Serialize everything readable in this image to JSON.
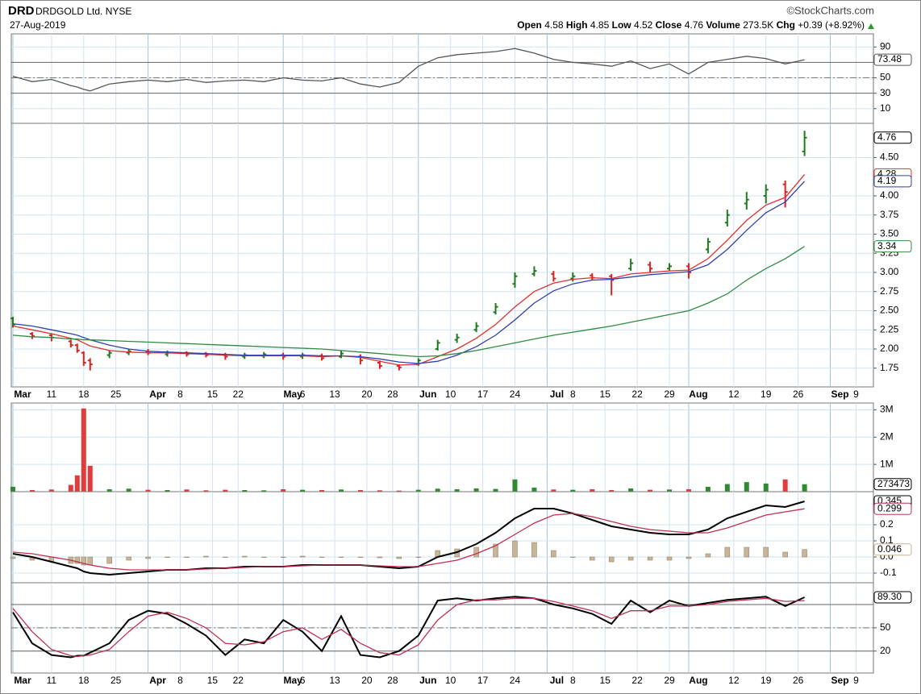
{
  "header": {
    "symbol": "DRD",
    "name": "DRDGOLD Ltd.",
    "exchange": "NYSE",
    "date": "27-Aug-2019",
    "source": "©StockCharts.com",
    "quote": [
      {
        "label": "Open",
        "value": "4.58"
      },
      {
        "label": "High",
        "value": "4.85"
      },
      {
        "label": "Low",
        "value": "4.52"
      },
      {
        "label": "Close",
        "value": "4.76"
      },
      {
        "label": "Volume",
        "value": "273.5K"
      },
      {
        "label": "Chg",
        "value": "+0.39 (+8.92%)"
      }
    ]
  },
  "chart_data": {
    "type": "stock",
    "xlim": [
      -0.25,
      133.7
    ],
    "xticks": [
      {
        "value": 0,
        "label": "Mar"
      },
      {
        "value": 6,
        "label": "11"
      },
      {
        "value": 11,
        "label": "18"
      },
      {
        "value": 16,
        "label": "25"
      },
      {
        "value": 21,
        "label": "Apr"
      },
      {
        "value": 26,
        "label": "8"
      },
      {
        "value": 31,
        "label": "15"
      },
      {
        "value": 35,
        "label": "22"
      },
      {
        "value": 42,
        "label": "May"
      },
      {
        "value": 45,
        "label": "6"
      },
      {
        "value": 50,
        "label": "13"
      },
      {
        "value": 55,
        "label": "20"
      },
      {
        "value": 59,
        "label": "28"
      },
      {
        "value": 63,
        "label": "Jun"
      },
      {
        "value": 68,
        "label": "10"
      },
      {
        "value": 73,
        "label": "17"
      },
      {
        "value": 78,
        "label": "24"
      },
      {
        "value": 83,
        "label": "Jul"
      },
      {
        "value": 87,
        "label": "8"
      },
      {
        "value": 92,
        "label": "15"
      },
      {
        "value": 97,
        "label": "22"
      },
      {
        "value": 102,
        "label": "29"
      },
      {
        "value": 105,
        "label": "Aug"
      },
      {
        "value": 112,
        "label": "12"
      },
      {
        "value": 117,
        "label": "19"
      },
      {
        "value": 122,
        "label": "26"
      },
      {
        "value": 127,
        "label": "Sep"
      },
      {
        "value": 131,
        "label": "9"
      }
    ],
    "x": [
      0,
      3,
      6,
      9,
      10,
      11,
      12,
      15,
      18,
      21,
      24,
      27,
      30,
      33,
      36,
      39,
      42,
      45,
      48,
      51,
      54,
      57,
      60,
      63,
      66,
      69,
      72,
      75,
      78,
      81,
      84,
      87,
      90,
      93,
      96,
      99,
      102,
      105,
      108,
      111,
      114,
      117,
      120,
      123
    ],
    "panels": [
      {
        "type": "line",
        "ylim": [
          -9,
          107
        ],
        "yticks": [
          10,
          30,
          50,
          90
        ],
        "bands": [
          30,
          70
        ],
        "centerline": 50,
        "series": [
          {
            "color": "#555555",
            "label_last": true,
            "values": [
              52,
              45,
              48,
              40,
              38,
              35,
              33,
              42,
              45,
              47,
              45,
              48,
              44,
              46,
              47,
              45,
              50,
              47,
              46,
              50,
              42,
              38,
              44,
              65,
              76,
              80,
              82,
              84,
              88,
              82,
              74,
              70,
              68,
              65,
              72,
              62,
              68,
              55,
              70,
              74,
              78,
              75,
              68,
              73.48
            ]
          }
        ]
      },
      {
        "type": "ohlc",
        "ylim": [
          1.505,
          4.947
        ],
        "x_labels": true,
        "label_last": true,
        "up_color": "#1e7b1e",
        "down_color": "#e02020",
        "yticks": [
          1.75,
          {
            "value": 2,
            "label": "2.00"
          },
          2.25,
          {
            "value": 2.5,
            "label": "2.50"
          },
          2.75,
          {
            "value": 3,
            "label": "3.00"
          },
          3.25,
          {
            "value": 3.5,
            "label": "3.50"
          },
          3.75,
          {
            "value": 4,
            "label": "4.00"
          },
          {
            "value": 4.5,
            "label": "4.50"
          }
        ],
        "open": [
          2.4,
          2.2,
          2.18,
          2.1,
          2.05,
          1.95,
          1.85,
          1.92,
          1.95,
          1.97,
          1.93,
          1.95,
          1.94,
          1.92,
          1.9,
          1.91,
          1.92,
          1.9,
          1.91,
          1.9,
          1.9,
          1.82,
          1.78,
          1.8,
          2.0,
          2.12,
          2.25,
          2.48,
          2.85,
          2.98,
          2.98,
          2.92,
          2.96,
          2.95,
          3.05,
          3.1,
          3.05,
          3.08,
          3.3,
          3.65,
          3.9,
          4.0,
          4.15,
          4.58
        ],
        "high": [
          2.42,
          2.22,
          2.2,
          2.12,
          2.07,
          1.97,
          1.88,
          1.98,
          2.0,
          2.0,
          1.98,
          1.97,
          1.96,
          1.95,
          1.95,
          1.96,
          1.95,
          1.95,
          1.94,
          1.98,
          1.93,
          1.85,
          1.8,
          1.88,
          2.12,
          2.2,
          2.35,
          2.6,
          3.0,
          3.08,
          3.02,
          3.0,
          2.99,
          2.98,
          3.18,
          3.14,
          3.12,
          3.12,
          3.45,
          3.82,
          4.05,
          4.15,
          4.2,
          4.85
        ],
        "low": [
          2.28,
          2.13,
          2.1,
          2.02,
          1.95,
          1.78,
          1.72,
          1.88,
          1.92,
          1.92,
          1.9,
          1.9,
          1.89,
          1.86,
          1.87,
          1.88,
          1.86,
          1.87,
          1.85,
          1.88,
          1.8,
          1.74,
          1.72,
          1.78,
          1.98,
          2.08,
          2.22,
          2.45,
          2.8,
          2.95,
          2.88,
          2.88,
          2.9,
          2.7,
          3.02,
          3.0,
          3.02,
          2.92,
          3.25,
          3.6,
          3.82,
          3.9,
          3.85,
          4.52
        ],
        "close": [
          2.32,
          2.17,
          2.15,
          2.05,
          1.98,
          1.82,
          1.8,
          1.95,
          1.97,
          1.95,
          1.95,
          1.93,
          1.92,
          1.9,
          1.92,
          1.93,
          1.9,
          1.92,
          1.88,
          1.94,
          1.85,
          1.78,
          1.76,
          1.85,
          2.08,
          2.15,
          2.3,
          2.55,
          2.95,
          3.02,
          2.92,
          2.95,
          2.93,
          2.9,
          3.12,
          3.05,
          3.08,
          3.0,
          3.4,
          3.75,
          3.95,
          4.08,
          4.05,
          4.76
        ],
        "series": [
          {
            "color": "#e03030",
            "label_last": true,
            "values": [
              2.3,
              2.25,
              2.2,
              2.14,
              2.12,
              2.08,
              2.04,
              1.98,
              1.96,
              1.95,
              1.95,
              1.94,
              1.93,
              1.92,
              1.91,
              1.91,
              1.91,
              1.91,
              1.9,
              1.91,
              1.89,
              1.84,
              1.79,
              1.8,
              1.9,
              2.0,
              2.14,
              2.32,
              2.55,
              2.75,
              2.86,
              2.91,
              2.93,
              2.92,
              2.98,
              3.0,
              3.02,
              3.03,
              3.18,
              3.42,
              3.68,
              3.88,
              3.98,
              4.28
            ]
          },
          {
            "color": "#3040b0",
            "label_last": true,
            "values": [
              2.33,
              2.3,
              2.25,
              2.2,
              2.18,
              2.15,
              2.12,
              2.05,
              2.0,
              1.97,
              1.96,
              1.95,
              1.94,
              1.93,
              1.92,
              1.92,
              1.92,
              1.92,
              1.91,
              1.91,
              1.9,
              1.87,
              1.83,
              1.81,
              1.84,
              1.92,
              2.03,
              2.18,
              2.38,
              2.6,
              2.76,
              2.85,
              2.9,
              2.91,
              2.94,
              2.97,
              2.99,
              3.01,
              3.1,
              3.3,
              3.55,
              3.78,
              3.92,
              4.19
            ]
          },
          {
            "color": "#2e8b3e",
            "label_last": true,
            "values": [
              2.18,
              2.16,
              2.15,
              2.13,
              2.13,
              2.12,
              2.12,
              2.11,
              2.1,
              2.09,
              2.08,
              2.07,
              2.06,
              2.05,
              2.04,
              2.03,
              2.02,
              2.01,
              2.0,
              1.98,
              1.96,
              1.94,
              1.92,
              1.9,
              1.91,
              1.94,
              1.98,
              2.03,
              2.08,
              2.13,
              2.18,
              2.22,
              2.26,
              2.3,
              2.35,
              2.4,
              2.45,
              2.5,
              2.6,
              2.72,
              2.9,
              3.05,
              3.18,
              3.34
            ]
          }
        ]
      },
      {
        "type": "bar",
        "ylim": [
          0,
          3250000
        ],
        "label_last": true,
        "up_color": "#2e8b2e",
        "down_color": "#e03c3c",
        "yticks": [
          {
            "value": 1000000,
            "label": "1M"
          },
          {
            "value": 2000000,
            "label": "2M"
          },
          {
            "value": 3000000,
            "label": "3M"
          }
        ],
        "values": [
          180000,
          60000,
          80000,
          250000,
          600000,
          3050000,
          950000,
          90000,
          110000,
          70000,
          60000,
          80000,
          50000,
          70000,
          60000,
          50000,
          90000,
          70000,
          60000,
          80000,
          60000,
          50000,
          40000,
          70000,
          110000,
          90000,
          120000,
          100000,
          450000,
          150000,
          80000,
          70000,
          90000,
          60000,
          120000,
          70000,
          80000,
          90000,
          180000,
          280000,
          350000,
          300000,
          450000,
          273473
        ]
      },
      {
        "type": "line",
        "ylim": [
          -0.16,
          0.405
        ],
        "yticks": [
          -0.1,
          {
            "value": 0,
            "label": "0.0"
          },
          0.1,
          0.2
        ],
        "series": [
          {
            "type": "bar",
            "color": "#c8b496",
            "label_last": true,
            "values": [
              -0.01,
              -0.02,
              -0.03,
              -0.04,
              -0.04,
              -0.05,
              -0.05,
              -0.04,
              -0.02,
              -0.01,
              0,
              0,
              0.005,
              0,
              0.005,
              0,
              0,
              0.005,
              0,
              0,
              0,
              -0.005,
              -0.01,
              0,
              0.04,
              0.05,
              0.06,
              0.08,
              0.1,
              0.09,
              0.04,
              0,
              -0.02,
              -0.03,
              -0.02,
              -0.02,
              -0.02,
              -0.01,
              0.02,
              0.06,
              0.06,
              0.06,
              0.03,
              0.046
            ]
          },
          {
            "color": "#000000",
            "label_last": true,
            "values": [
              0.02,
              0.0,
              -0.03,
              -0.06,
              -0.07,
              -0.09,
              -0.1,
              -0.11,
              -0.1,
              -0.09,
              -0.08,
              -0.08,
              -0.07,
              -0.07,
              -0.06,
              -0.06,
              -0.06,
              -0.05,
              -0.05,
              -0.05,
              -0.05,
              -0.06,
              -0.07,
              -0.06,
              0.0,
              0.03,
              0.08,
              0.15,
              0.24,
              0.3,
              0.3,
              0.27,
              0.23,
              0.19,
              0.17,
              0.15,
              0.14,
              0.14,
              0.17,
              0.24,
              0.28,
              0.32,
              0.31,
              0.345
            ]
          },
          {
            "color": "#c03050",
            "label_last": true,
            "values": [
              0.03,
              0.02,
              0.0,
              -0.02,
              -0.03,
              -0.04,
              -0.05,
              -0.07,
              -0.08,
              -0.08,
              -0.08,
              -0.08,
              -0.075,
              -0.07,
              -0.065,
              -0.06,
              -0.06,
              -0.055,
              -0.05,
              -0.05,
              -0.05,
              -0.055,
              -0.06,
              -0.06,
              -0.04,
              -0.02,
              0.02,
              0.07,
              0.14,
              0.21,
              0.26,
              0.27,
              0.25,
              0.22,
              0.19,
              0.17,
              0.16,
              0.15,
              0.15,
              0.18,
              0.22,
              0.26,
              0.28,
              0.299
            ]
          }
        ]
      },
      {
        "type": "line",
        "ylim": [
          -8.3,
          108
        ],
        "yticks": [
          20,
          50
        ],
        "bands": [
          20,
          80
        ],
        "centerline": 50,
        "x_labels": true,
        "series": [
          {
            "color": "#000000",
            "label_last": true,
            "last_label": "89.30",
            "values": [
              70,
              30,
              15,
              12,
              14,
              14,
              18,
              30,
              60,
              72,
              68,
              55,
              40,
              15,
              35,
              30,
              60,
              45,
              20,
              65,
              15,
              12,
              20,
              40,
              85,
              88,
              85,
              88,
              90,
              88,
              80,
              75,
              68,
              55,
              85,
              70,
              85,
              78,
              82,
              86,
              88,
              90,
              78,
              89.3
            ]
          },
          {
            "color": "#c03050",
            "values": [
              75,
              45,
              22,
              14,
              13,
              14,
              15,
              22,
              45,
              65,
              70,
              62,
              50,
              30,
              28,
              32,
              45,
              50,
              35,
              48,
              30,
              18,
              15,
              28,
              60,
              80,
              86,
              86,
              88,
              88,
              84,
              78,
              72,
              62,
              72,
              72,
              78,
              78,
              80,
              84,
              86,
              88,
              84,
              85
            ]
          }
        ]
      }
    ]
  }
}
